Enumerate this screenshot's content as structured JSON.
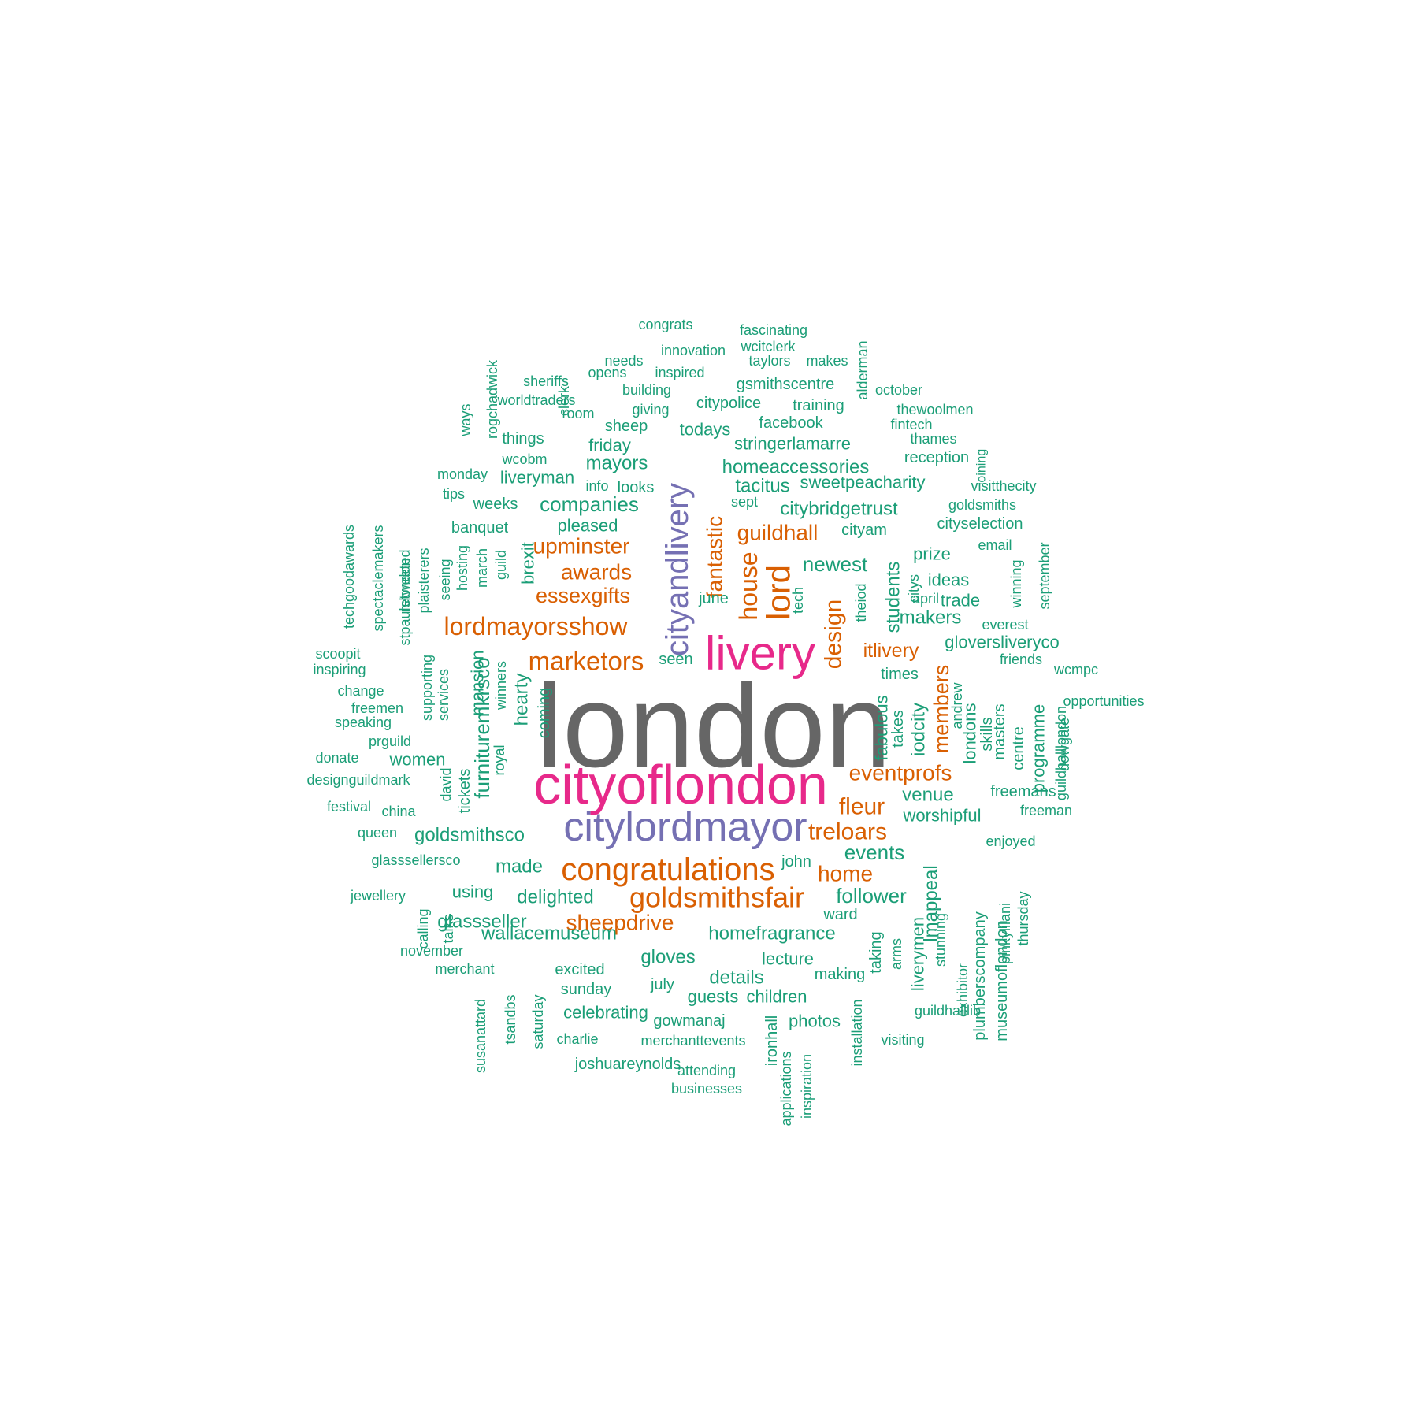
{
  "colors": {
    "gray": "#666666",
    "magenta": "#E7298A",
    "purple": "#7570B3",
    "orange": "#D95F02",
    "teal": "#1B9E77"
  },
  "words": [
    {
      "text": "london",
      "c": "gray"
    },
    {
      "text": "cityoflondon",
      "c": "magenta"
    },
    {
      "text": "livery",
      "c": "magenta"
    },
    {
      "text": "citylordmayor",
      "c": "purple"
    },
    {
      "text": "cityandlivery",
      "c": "purple"
    },
    {
      "text": "congratulations",
      "c": "orange"
    },
    {
      "text": "goldsmithsfair",
      "c": "orange"
    },
    {
      "text": "lordmayorsshow",
      "c": "orange"
    },
    {
      "text": "marketors",
      "c": "orange"
    },
    {
      "text": "lord",
      "c": "orange"
    },
    {
      "text": "house",
      "c": "orange"
    },
    {
      "text": "design",
      "c": "orange"
    },
    {
      "text": "fantastic",
      "c": "orange"
    },
    {
      "text": "guildhall",
      "c": "orange"
    },
    {
      "text": "upminster",
      "c": "orange"
    },
    {
      "text": "awards",
      "c": "orange"
    },
    {
      "text": "essexgifts",
      "c": "orange"
    },
    {
      "text": "itlivery",
      "c": "orange"
    },
    {
      "text": "members",
      "c": "orange"
    },
    {
      "text": "eventprofs",
      "c": "orange"
    },
    {
      "text": "fleur",
      "c": "orange"
    },
    {
      "text": "treloars",
      "c": "orange"
    },
    {
      "text": "home",
      "c": "orange"
    },
    {
      "text": "sheepdrive",
      "c": "orange"
    },
    {
      "text": "congrats",
      "c": "teal"
    },
    {
      "text": "fascinating",
      "c": "teal"
    },
    {
      "text": "innovation",
      "c": "teal"
    },
    {
      "text": "wcitclerk",
      "c": "teal"
    },
    {
      "text": "needs",
      "c": "teal"
    },
    {
      "text": "taylors",
      "c": "teal"
    },
    {
      "text": "makes",
      "c": "teal"
    },
    {
      "text": "opens",
      "c": "teal"
    },
    {
      "text": "inspired",
      "c": "teal"
    },
    {
      "text": "sheriffs",
      "c": "teal"
    },
    {
      "text": "building",
      "c": "teal"
    },
    {
      "text": "gsmithscentre",
      "c": "teal"
    },
    {
      "text": "october",
      "c": "teal"
    },
    {
      "text": "worldtraders",
      "c": "teal"
    },
    {
      "text": "citypolice",
      "c": "teal"
    },
    {
      "text": "training",
      "c": "teal"
    },
    {
      "text": "room",
      "c": "teal"
    },
    {
      "text": "giving",
      "c": "teal"
    },
    {
      "text": "thewoolmen",
      "c": "teal"
    },
    {
      "text": "facebook",
      "c": "teal"
    },
    {
      "text": "sheep",
      "c": "teal"
    },
    {
      "text": "todays",
      "c": "teal"
    },
    {
      "text": "fintech",
      "c": "teal"
    },
    {
      "text": "things",
      "c": "teal"
    },
    {
      "text": "thames",
      "c": "teal"
    },
    {
      "text": "friday",
      "c": "teal"
    },
    {
      "text": "stringerlamarre",
      "c": "teal"
    },
    {
      "text": "wcobm",
      "c": "teal"
    },
    {
      "text": "reception",
      "c": "teal"
    },
    {
      "text": "mayors",
      "c": "teal"
    },
    {
      "text": "homeaccessories",
      "c": "teal"
    },
    {
      "text": "monday",
      "c": "teal"
    },
    {
      "text": "liveryman",
      "c": "teal"
    },
    {
      "text": "info",
      "c": "teal"
    },
    {
      "text": "looks",
      "c": "teal"
    },
    {
      "text": "tacitus",
      "c": "teal"
    },
    {
      "text": "sweetpeacharity",
      "c": "teal"
    },
    {
      "text": "visitthecity",
      "c": "teal"
    },
    {
      "text": "tips",
      "c": "teal"
    },
    {
      "text": "weeks",
      "c": "teal"
    },
    {
      "text": "companies",
      "c": "teal"
    },
    {
      "text": "sept",
      "c": "teal"
    },
    {
      "text": "citybridgetrust",
      "c": "teal"
    },
    {
      "text": "goldsmiths",
      "c": "teal"
    },
    {
      "text": "banquet",
      "c": "teal"
    },
    {
      "text": "pleased",
      "c": "teal"
    },
    {
      "text": "cityam",
      "c": "teal"
    },
    {
      "text": "cityselection",
      "c": "teal"
    },
    {
      "text": "email",
      "c": "teal"
    },
    {
      "text": "newest",
      "c": "teal"
    },
    {
      "text": "prize",
      "c": "teal"
    },
    {
      "text": "ideas",
      "c": "teal"
    },
    {
      "text": "june",
      "c": "teal"
    },
    {
      "text": "april",
      "c": "teal"
    },
    {
      "text": "trade",
      "c": "teal"
    },
    {
      "text": "makers",
      "c": "teal"
    },
    {
      "text": "everest",
      "c": "teal"
    },
    {
      "text": "gloversliveryco",
      "c": "teal"
    },
    {
      "text": "scoopit",
      "c": "teal"
    },
    {
      "text": "seen",
      "c": "teal"
    },
    {
      "text": "friends",
      "c": "teal"
    },
    {
      "text": "inspiring",
      "c": "teal"
    },
    {
      "text": "times",
      "c": "teal"
    },
    {
      "text": "wcmpc",
      "c": "teal"
    },
    {
      "text": "change",
      "c": "teal"
    },
    {
      "text": "opportunities",
      "c": "teal"
    },
    {
      "text": "freemen",
      "c": "teal"
    },
    {
      "text": "speaking",
      "c": "teal"
    },
    {
      "text": "prguild",
      "c": "teal"
    },
    {
      "text": "donate",
      "c": "teal"
    },
    {
      "text": "women",
      "c": "teal"
    },
    {
      "text": "designguildmark",
      "c": "teal"
    },
    {
      "text": "freemans",
      "c": "teal"
    },
    {
      "text": "venue",
      "c": "teal"
    },
    {
      "text": "festival",
      "c": "teal"
    },
    {
      "text": "china",
      "c": "teal"
    },
    {
      "text": "worshipful",
      "c": "teal"
    },
    {
      "text": "freeman",
      "c": "teal"
    },
    {
      "text": "queen",
      "c": "teal"
    },
    {
      "text": "goldsmithsco",
      "c": "teal"
    },
    {
      "text": "enjoyed",
      "c": "teal"
    },
    {
      "text": "events",
      "c": "teal"
    },
    {
      "text": "glasssellersco",
      "c": "teal"
    },
    {
      "text": "made",
      "c": "teal"
    },
    {
      "text": "john",
      "c": "teal"
    },
    {
      "text": "jewellery",
      "c": "teal"
    },
    {
      "text": "using",
      "c": "teal"
    },
    {
      "text": "delighted",
      "c": "teal"
    },
    {
      "text": "follower",
      "c": "teal"
    },
    {
      "text": "glassseller",
      "c": "teal"
    },
    {
      "text": "ward",
      "c": "teal"
    },
    {
      "text": "homefragrance",
      "c": "teal"
    },
    {
      "text": "wallacemuseum",
      "c": "teal"
    },
    {
      "text": "november",
      "c": "teal"
    },
    {
      "text": "gloves",
      "c": "teal"
    },
    {
      "text": "lecture",
      "c": "teal"
    },
    {
      "text": "merchant",
      "c": "teal"
    },
    {
      "text": "excited",
      "c": "teal"
    },
    {
      "text": "details",
      "c": "teal"
    },
    {
      "text": "making",
      "c": "teal"
    },
    {
      "text": "july",
      "c": "teal"
    },
    {
      "text": "sunday",
      "c": "teal"
    },
    {
      "text": "guests",
      "c": "teal"
    },
    {
      "text": "children",
      "c": "teal"
    },
    {
      "text": "guildhalllib",
      "c": "teal"
    },
    {
      "text": "celebrating",
      "c": "teal"
    },
    {
      "text": "gowmanaj",
      "c": "teal"
    },
    {
      "text": "photos",
      "c": "teal"
    },
    {
      "text": "charlie",
      "c": "teal"
    },
    {
      "text": "merchanttevents",
      "c": "teal"
    },
    {
      "text": "visiting",
      "c": "teal"
    },
    {
      "text": "joshuareynolds",
      "c": "teal"
    },
    {
      "text": "attending",
      "c": "teal"
    },
    {
      "text": "businesses",
      "c": "teal"
    },
    {
      "text": "alderman",
      "c": "teal"
    },
    {
      "text": "ways",
      "c": "teal"
    },
    {
      "text": "rogchadwick",
      "c": "teal"
    },
    {
      "text": "clerk",
      "c": "teal"
    },
    {
      "text": "joining",
      "c": "teal"
    },
    {
      "text": "techgoodawards",
      "c": "teal"
    },
    {
      "text": "spectaclemakers",
      "c": "teal"
    },
    {
      "text": "retweeted",
      "c": "teal"
    },
    {
      "text": "stpaulslondon",
      "c": "teal"
    },
    {
      "text": "plaisterers",
      "c": "teal"
    },
    {
      "text": "seeing",
      "c": "teal"
    },
    {
      "text": "hosting",
      "c": "teal"
    },
    {
      "text": "march",
      "c": "teal"
    },
    {
      "text": "guild",
      "c": "teal"
    },
    {
      "text": "brexit",
      "c": "teal"
    },
    {
      "text": "tech",
      "c": "teal"
    },
    {
      "text": "theiod",
      "c": "teal"
    },
    {
      "text": "students",
      "c": "teal"
    },
    {
      "text": "citys",
      "c": "teal"
    },
    {
      "text": "winning",
      "c": "teal"
    },
    {
      "text": "september",
      "c": "teal"
    },
    {
      "text": "supporting",
      "c": "teal"
    },
    {
      "text": "services",
      "c": "teal"
    },
    {
      "text": "mansion",
      "c": "teal"
    },
    {
      "text": "furnituremkrsco",
      "c": "teal"
    },
    {
      "text": "winners",
      "c": "teal"
    },
    {
      "text": "hearty",
      "c": "teal"
    },
    {
      "text": "coming",
      "c": "teal"
    },
    {
      "text": "royal",
      "c": "teal"
    },
    {
      "text": "david",
      "c": "teal"
    },
    {
      "text": "tickets",
      "c": "teal"
    },
    {
      "text": "fabulous",
      "c": "teal"
    },
    {
      "text": "takes",
      "c": "teal"
    },
    {
      "text": "iodcity",
      "c": "teal"
    },
    {
      "text": "andrew",
      "c": "teal"
    },
    {
      "text": "londons",
      "c": "teal"
    },
    {
      "text": "skills",
      "c": "teal"
    },
    {
      "text": "masters",
      "c": "teal"
    },
    {
      "text": "centre",
      "c": "teal"
    },
    {
      "text": "programme",
      "c": "teal"
    },
    {
      "text": "guildhalllondon",
      "c": "teal"
    },
    {
      "text": "dowgate",
      "c": "teal"
    },
    {
      "text": "calling",
      "c": "teal"
    },
    {
      "text": "talks",
      "c": "teal"
    },
    {
      "text": "lmappeal",
      "c": "teal"
    },
    {
      "text": "taking",
      "c": "teal"
    },
    {
      "text": "arms",
      "c": "teal"
    },
    {
      "text": "liverymen",
      "c": "teal"
    },
    {
      "text": "stunning",
      "c": "teal"
    },
    {
      "text": "exhibitor",
      "c": "teal"
    },
    {
      "text": "plumberscompany",
      "c": "teal"
    },
    {
      "text": "museumoflondon",
      "c": "teal"
    },
    {
      "text": "pinkylilani",
      "c": "teal"
    },
    {
      "text": "thursday",
      "c": "teal"
    },
    {
      "text": "susanattard",
      "c": "teal"
    },
    {
      "text": "tsandbs",
      "c": "teal"
    },
    {
      "text": "saturday",
      "c": "teal"
    },
    {
      "text": "ironhall",
      "c": "teal"
    },
    {
      "text": "applications",
      "c": "teal"
    },
    {
      "text": "inspiration",
      "c": "teal"
    },
    {
      "text": "installation",
      "c": "teal"
    }
  ]
}
